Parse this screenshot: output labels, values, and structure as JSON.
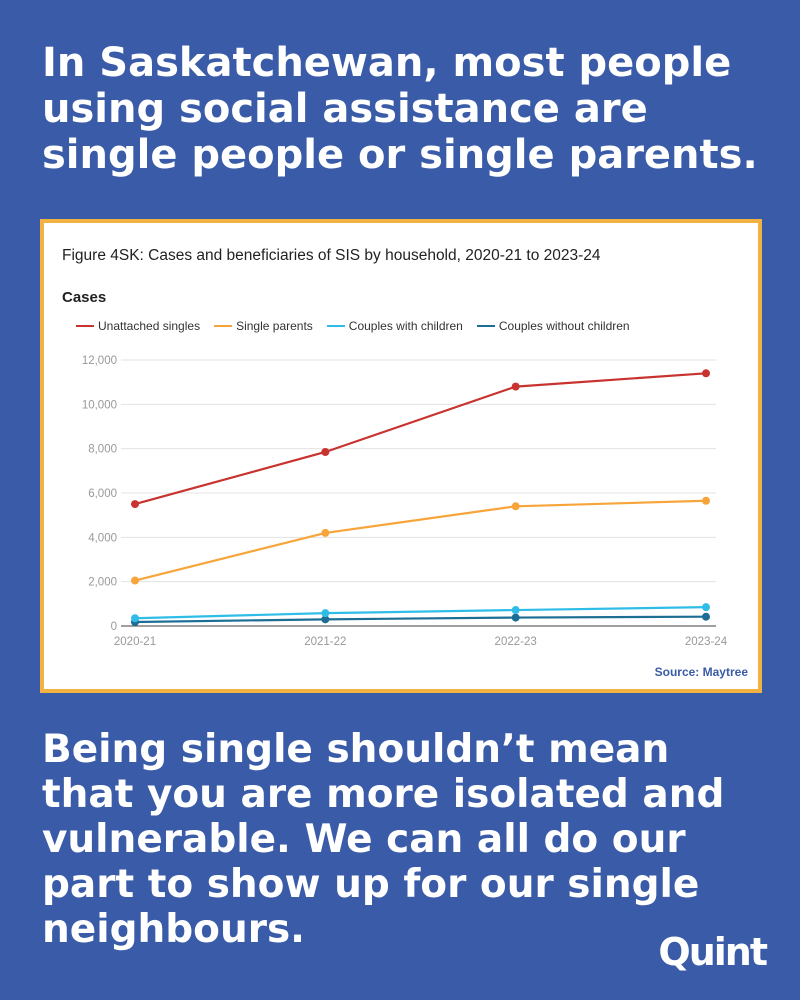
{
  "headline": "In Saskatchewan, most people using social assistance are single people or single parents.",
  "body_text": "Being single shouldn’t mean that you are more isolated and vulnerable. We can all do our part to show up for our single neighbours.",
  "logo": "Quint",
  "source": "Source: Maytree",
  "colors": {
    "background": "#3a5ba7",
    "frame": "#f2b143",
    "unattached_singles": "#c8332f",
    "single_parents": "#f7a43a",
    "couples_with_children": "#2fbde8",
    "couples_without_children": "#1d6e94"
  },
  "chart_data": {
    "type": "line",
    "title": "Figure 4SK: Cases and beneficiaries of SIS by household, 2020-21 to 2023-24",
    "subtitle": "Cases",
    "categories": [
      "2020-21",
      "2021-22",
      "2022-23",
      "2023-24"
    ],
    "ylim": [
      0,
      12000
    ],
    "yticks": [
      0,
      2000,
      4000,
      6000,
      8000,
      10000,
      12000
    ],
    "ytick_labels": [
      "0",
      "2,000",
      "4,000",
      "6,000",
      "8,000",
      "10,000",
      "12,000"
    ],
    "grid": true,
    "legend_position": "top-left",
    "series": [
      {
        "name": "Unattached singles",
        "color": "#c8332f",
        "values": [
          5500,
          7850,
          10800,
          11400
        ]
      },
      {
        "name": "Single parents",
        "color": "#f7a43a",
        "values": [
          2050,
          4200,
          5400,
          5650
        ]
      },
      {
        "name": "Couples with children",
        "color": "#2fbde8",
        "values": [
          350,
          580,
          720,
          850
        ]
      },
      {
        "name": "Couples without children",
        "color": "#1d6e94",
        "values": [
          180,
          300,
          380,
          420
        ]
      }
    ]
  }
}
